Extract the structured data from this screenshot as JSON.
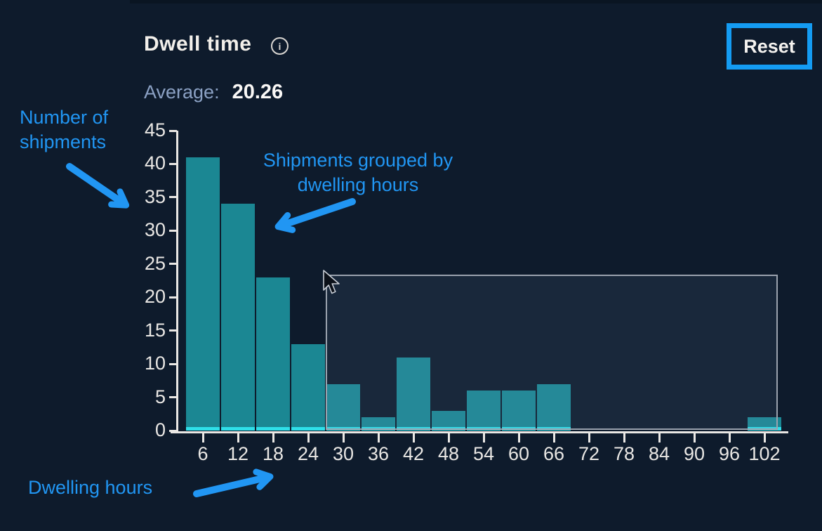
{
  "header": {
    "title": "Dwell time",
    "info_icon_glyph": "i",
    "reset_label": "Reset"
  },
  "stats": {
    "average_label": "Average:",
    "average_value": "20.26"
  },
  "annotations": {
    "y_axis_note": "Number of shipments",
    "bars_note": "Shipments grouped by dwelling hours",
    "x_axis_note": "Dwelling hours"
  },
  "colors": {
    "background": "#0E1B2C",
    "bar_fill": "#1B8793",
    "bar_baseline": "#2FDFE9",
    "accent_blue": "#2196F3",
    "reset_border": "#149CF3",
    "axis": "#E9E7E4",
    "selection_border": "#9AA2AE",
    "average_label": "#8BA1C4"
  },
  "chart_data": {
    "type": "bar",
    "title": "Dwell time",
    "categories": [
      6,
      12,
      18,
      24,
      30,
      36,
      42,
      48,
      54,
      60,
      66,
      72,
      78,
      84,
      90,
      96,
      102
    ],
    "values": [
      41,
      34,
      23,
      13,
      7,
      2,
      11,
      3,
      6,
      6,
      7,
      0,
      0,
      0,
      0,
      0,
      2
    ],
    "xlabel": "Dwelling hours",
    "ylabel": "Number of shipments",
    "ylim": [
      0,
      45
    ],
    "yticks": [
      0,
      5,
      10,
      15,
      20,
      25,
      30,
      35,
      40,
      45
    ],
    "grid": false,
    "legend": false,
    "average": 20.26,
    "selection": {
      "covers_categories": [
        30,
        36,
        42,
        48,
        54,
        60,
        66,
        72,
        78,
        84,
        90,
        96,
        102
      ],
      "state": "drag-selection overlay active with cursor at top-left corner"
    }
  }
}
